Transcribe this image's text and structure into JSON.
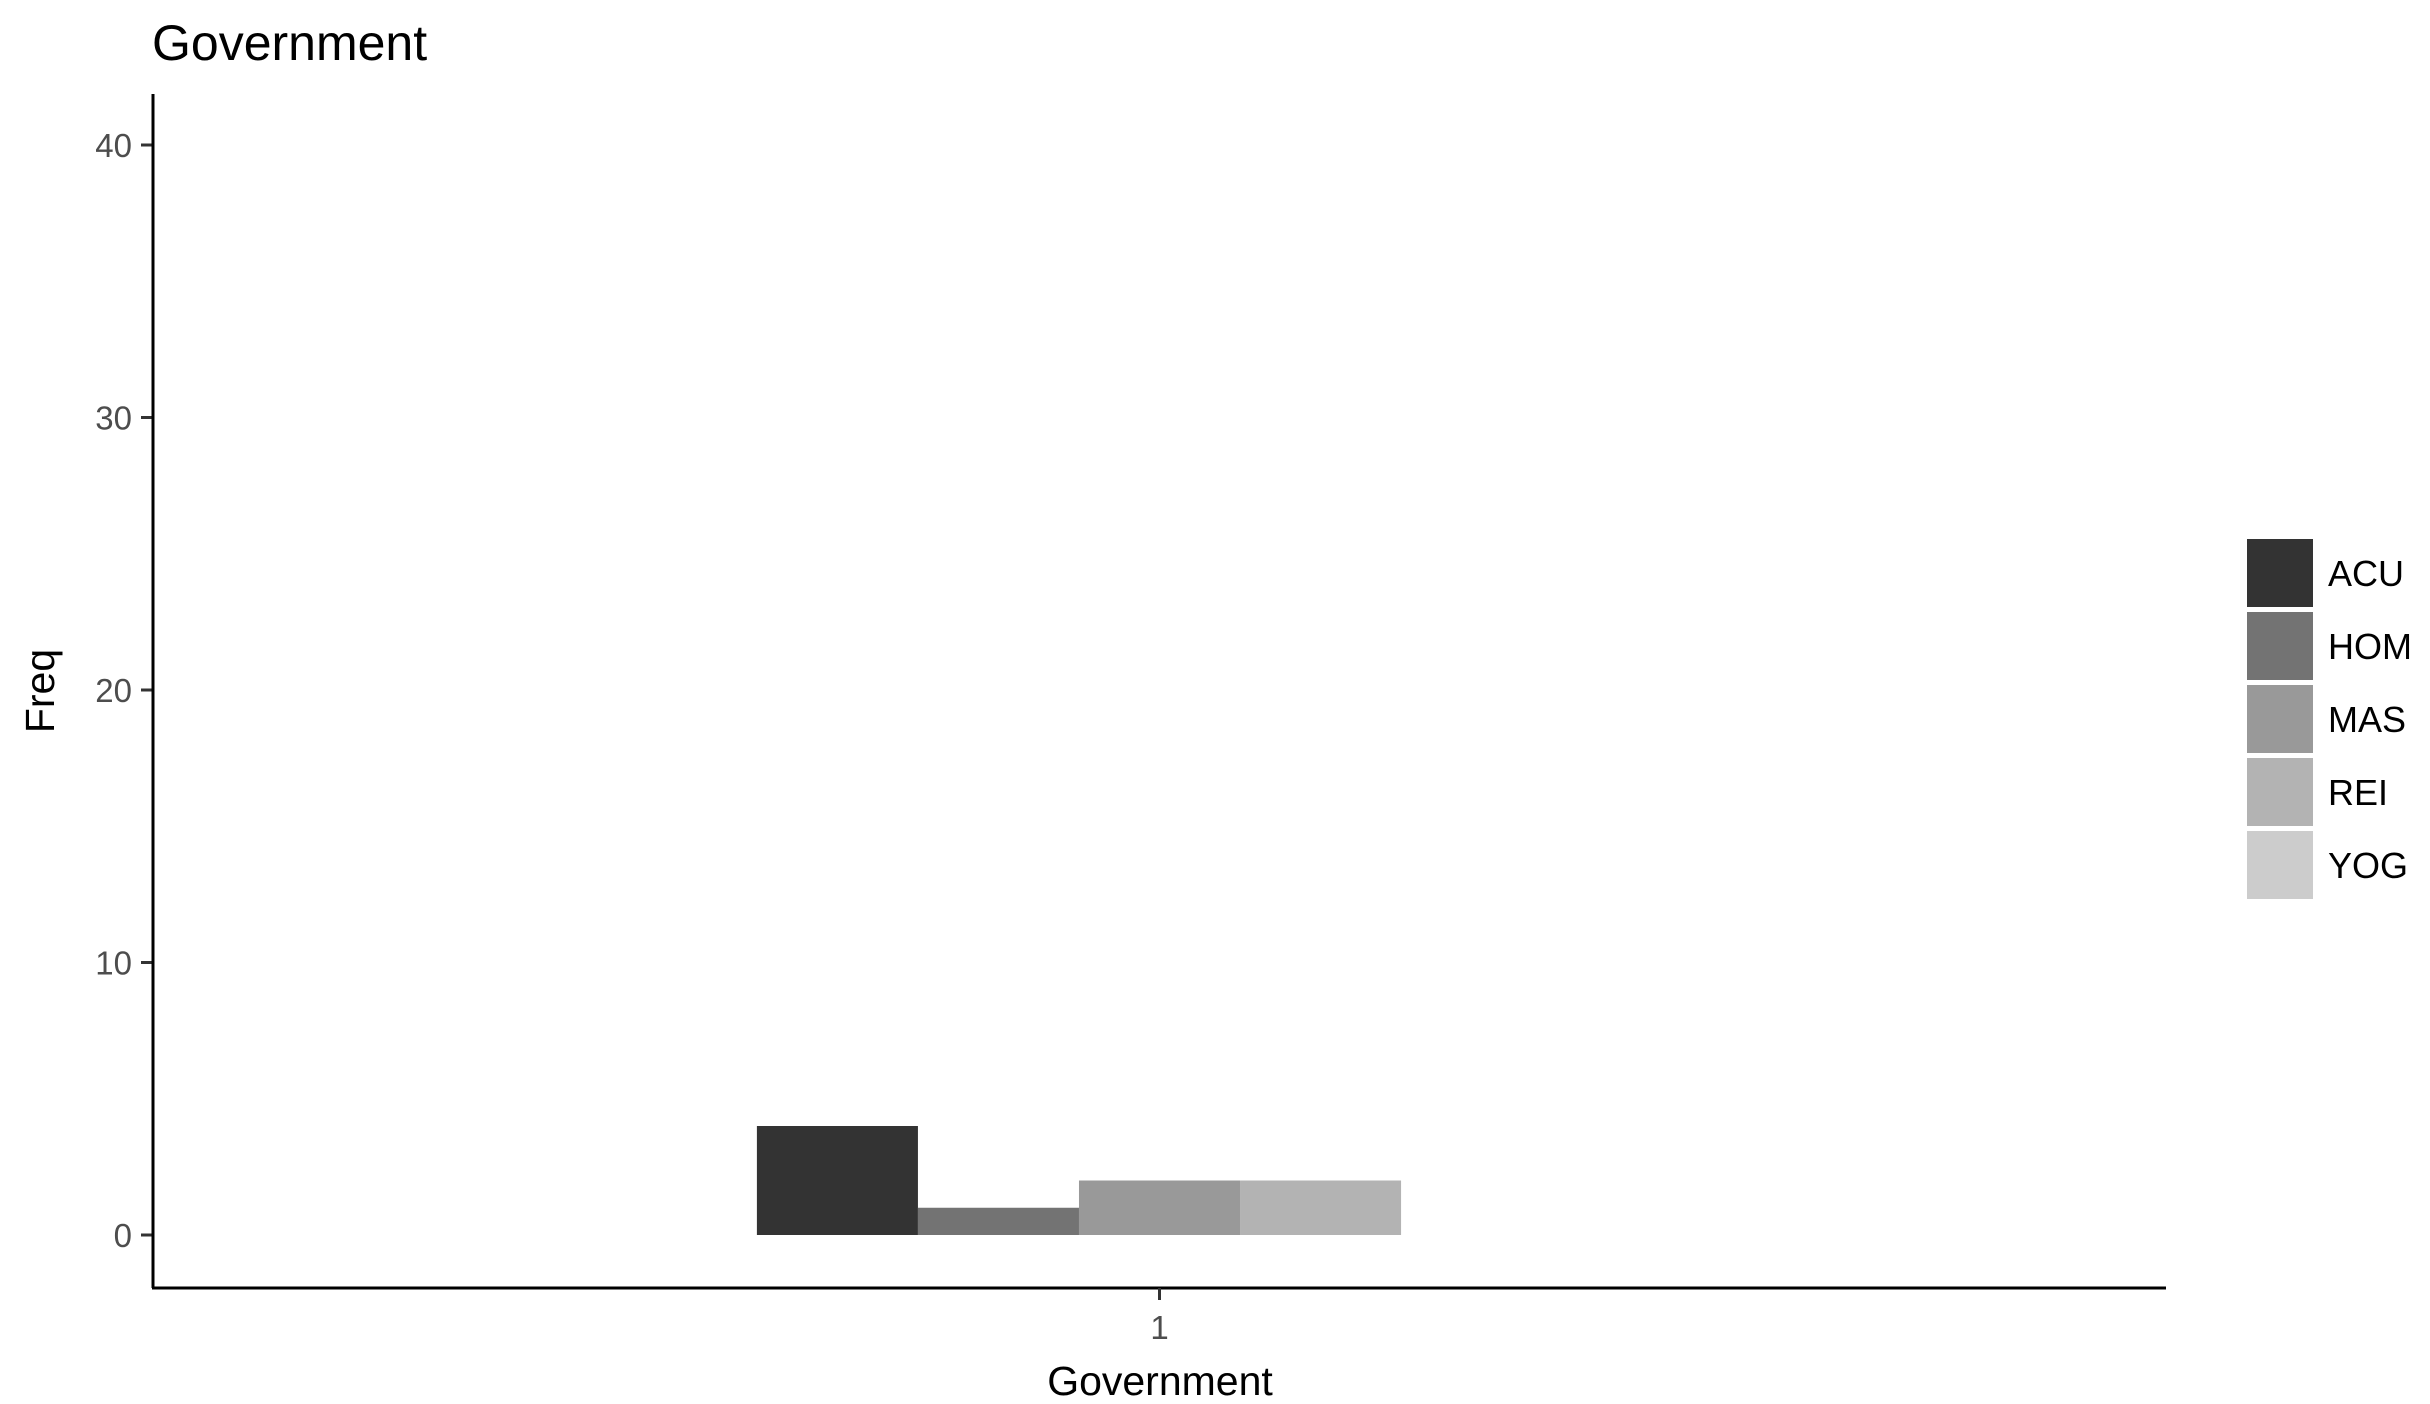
{
  "chart_data": {
    "type": "bar",
    "title": "Government",
    "xlabel": "Government",
    "ylabel": "Freq",
    "categories": [
      "1"
    ],
    "series": [
      {
        "name": "ACU",
        "values": [
          4
        ],
        "color": "#333333"
      },
      {
        "name": "HOM",
        "values": [
          1
        ],
        "color": "#737373"
      },
      {
        "name": "MAS",
        "values": [
          2
        ],
        "color": "#999999"
      },
      {
        "name": "REI",
        "values": [
          2
        ],
        "color": "#b3b3b3"
      },
      {
        "name": "YOG",
        "values": [
          0
        ],
        "color": "#cccccc"
      }
    ],
    "y_ticks": [
      0,
      10,
      20,
      30,
      40
    ],
    "ylim": [
      -2,
      42
    ],
    "grid": false,
    "legend_position": "right"
  }
}
